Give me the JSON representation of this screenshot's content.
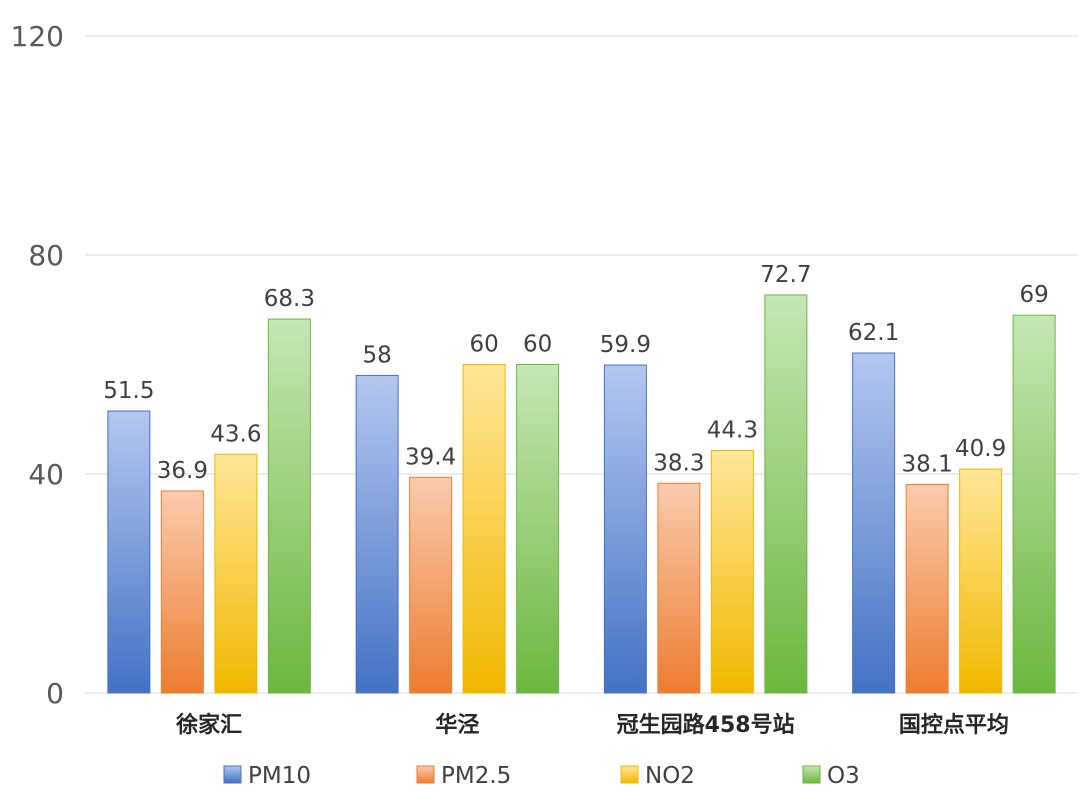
{
  "chart_data": {
    "type": "bar",
    "title": "",
    "xlabel": "",
    "ylabel": "",
    "ylim": [
      0,
      120
    ],
    "yticks": [
      0,
      40,
      80,
      120
    ],
    "grid": true,
    "legend_position": "bottom",
    "categories": [
      "徐家汇",
      "华泾",
      "冠生园路458号站",
      "国控点平均"
    ],
    "series": [
      {
        "name": "PM10",
        "values": [
          51.5,
          58,
          59.9,
          62.1
        ],
        "color_top": "#b4c7ef",
        "color_bottom": "#4472c4"
      },
      {
        "name": "PM2.5",
        "values": [
          36.9,
          39.4,
          38.3,
          38.1
        ],
        "color_top": "#f9cbad",
        "color_bottom": "#ed7d31"
      },
      {
        "name": "NO2",
        "values": [
          43.6,
          60,
          44.3,
          40.9
        ],
        "color_top": "#ffe699",
        "color_bottom": "#f1b800"
      },
      {
        "name": "O3",
        "values": [
          68.3,
          60,
          72.7,
          69
        ],
        "color_top": "#c6e6b4",
        "color_bottom": "#6cb73f"
      }
    ]
  }
}
